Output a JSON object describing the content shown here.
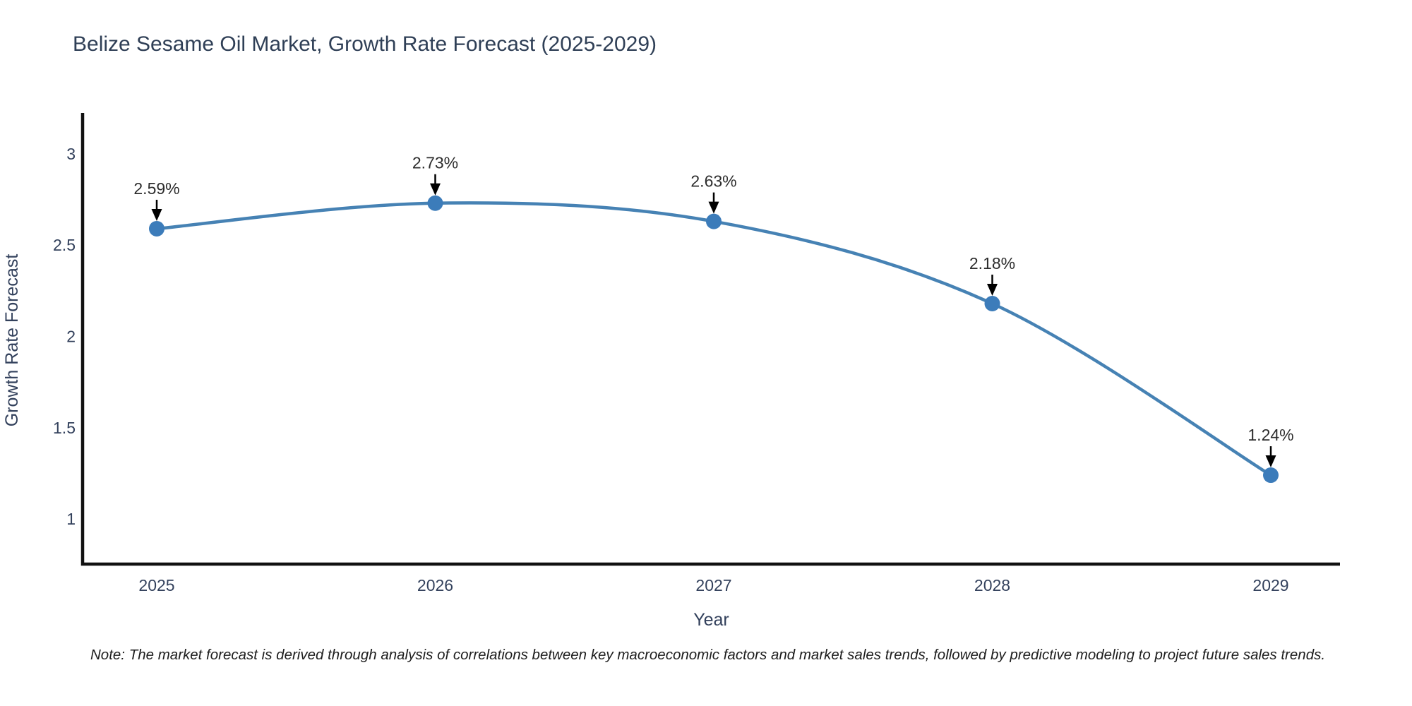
{
  "chart_data": {
    "type": "line",
    "title": "Belize Sesame Oil Market, Growth Rate Forecast (2025-2029)",
    "xlabel": "Year",
    "ylabel": "Growth Rate Forecast",
    "categories": [
      "2025",
      "2026",
      "2027",
      "2028",
      "2029"
    ],
    "values": [
      2.59,
      2.73,
      2.63,
      2.18,
      1.24
    ],
    "point_labels": [
      "2.59%",
      "2.73%",
      "2.63%",
      "2.18%",
      "1.24%"
    ],
    "ytick_values": [
      1,
      1.5,
      2,
      2.5,
      3
    ],
    "ytick_labels": [
      "1",
      "1.5",
      "2",
      "2.5",
      "3"
    ],
    "ylim": [
      0.753,
      3.224
    ],
    "grid": false,
    "legend": "none",
    "line_color": "#4682b4",
    "marker_color": "#3c7cba",
    "axis_color": "#111111",
    "text_color": "#33415c",
    "annotation_text_color": "#2d2d2d",
    "annotation_arrow_color": "#000000"
  },
  "note": "Note: The market forecast is derived through analysis of correlations between key macroeconomic factors and market sales trends, followed by predictive modeling to project future sales trends."
}
